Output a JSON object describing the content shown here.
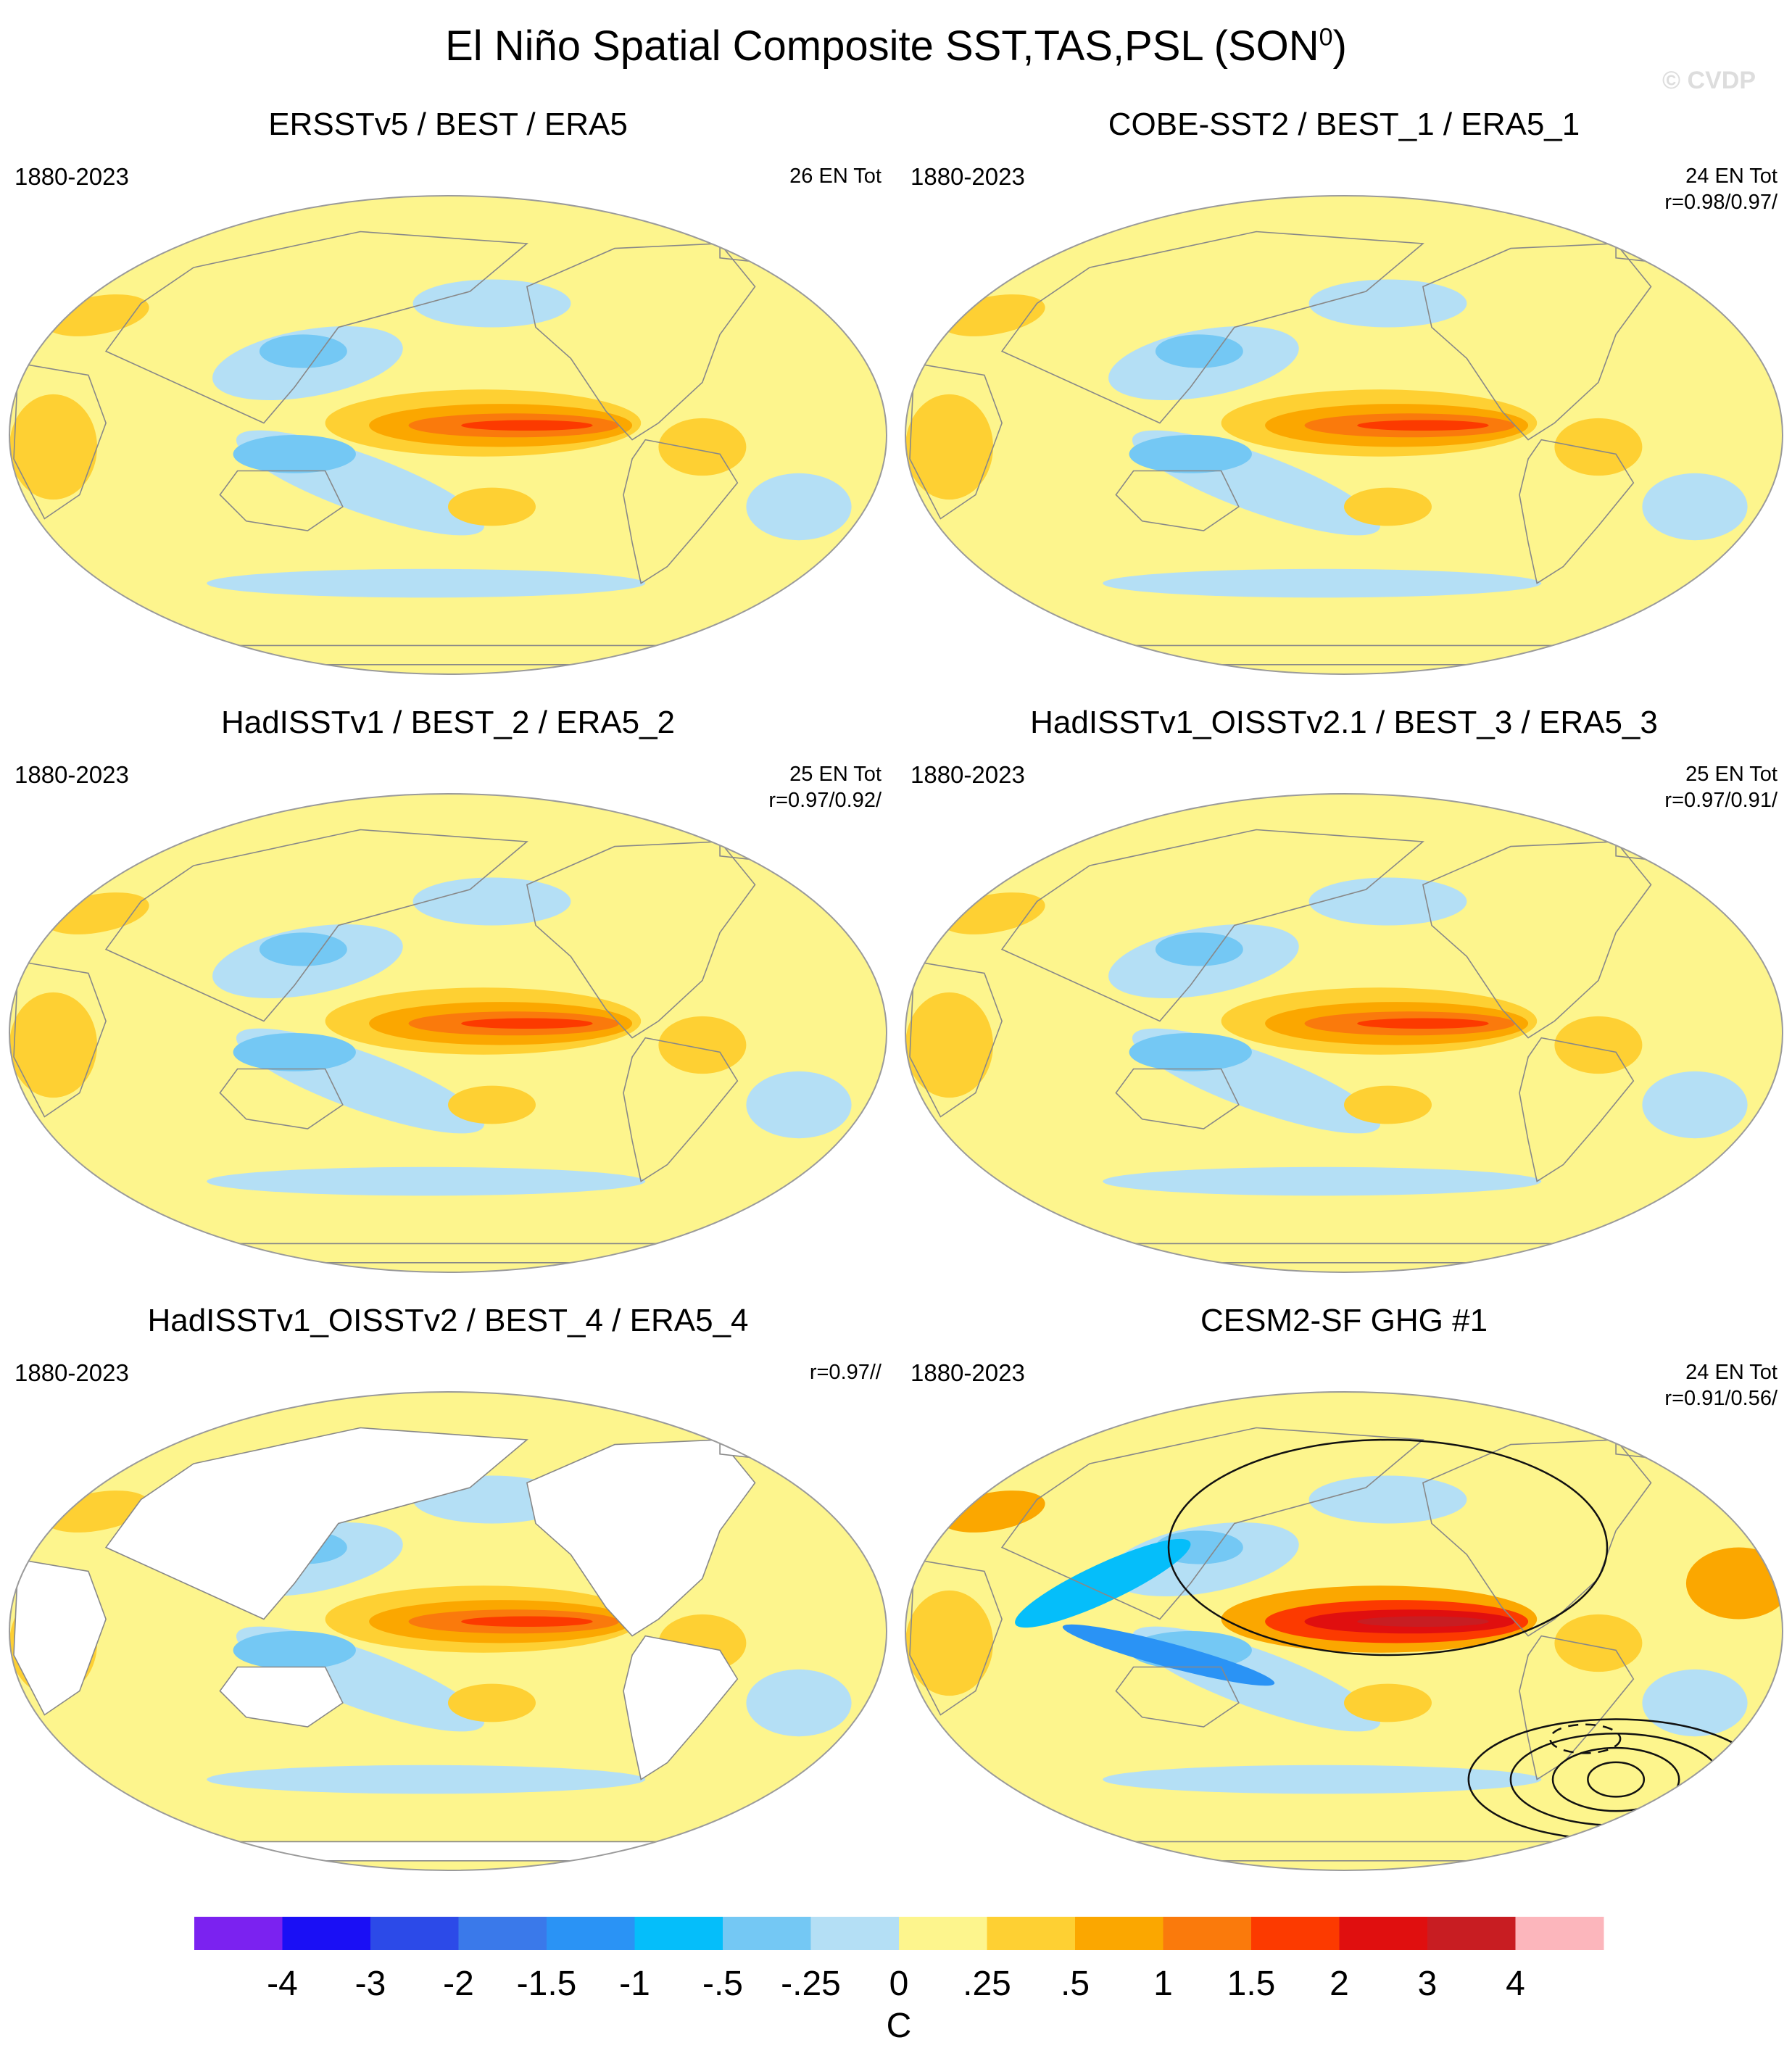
{
  "title": "El Niño Spatial Composite SST,TAS,PSL (SON",
  "title_superscript": "0",
  "title_suffix": ")",
  "watermark": "© CVDP",
  "panels": [
    {
      "title": "ERSSTv5 / BEST / ERA5",
      "years": "1880-2023",
      "stats": "26 EN Tot",
      "land_style": "filled",
      "psl_contours": false
    },
    {
      "title": "COBE-SST2 / BEST_1 / ERA5_1",
      "years": "1880-2023",
      "stats": "24 EN Tot\nr=0.98/0.97/",
      "land_style": "filled",
      "psl_contours": false
    },
    {
      "title": "HadISSTv1 / BEST_2 / ERA5_2",
      "years": "1880-2023",
      "stats": "25 EN Tot\nr=0.97/0.92/",
      "land_style": "filled",
      "psl_contours": false
    },
    {
      "title": "HadISSTv1_OISSTv2.1 / BEST_3 / ERA5_3",
      "years": "1880-2023",
      "stats": "25 EN Tot\nr=0.97/0.91/",
      "land_style": "filled",
      "psl_contours": false
    },
    {
      "title": "HadISSTv1_OISSTv2 / BEST_4 / ERA5_4",
      "years": "1880-2023",
      "stats": "r=0.97//",
      "land_style": "missing",
      "psl_contours": false
    },
    {
      "title": "CESM2-SF GHG #1",
      "years": "1880-2023",
      "stats": "24 EN Tot\nr=0.91/0.56/",
      "land_style": "warm",
      "psl_contours": true
    }
  ],
  "colorbar": {
    "unit": "C",
    "tick_labels": [
      "-4",
      "-3",
      "-2",
      "-1.5",
      "-1",
      "-.5",
      "-.25",
      "0",
      ".25",
      ".5",
      "1",
      "1.5",
      "2",
      "3",
      "4"
    ],
    "colors": [
      "#7b22f0",
      "#1a0ff5",
      "#2c4ae8",
      "#3a79ea",
      "#2a93f5",
      "#05befa",
      "#74c8f4",
      "#b4dff5",
      "#fdf58d",
      "#fed033",
      "#fba700",
      "#fa7a0c",
      "#fc3a00",
      "#e00f0f",
      "#c81d22",
      "#fcb6bc"
    ]
  }
}
